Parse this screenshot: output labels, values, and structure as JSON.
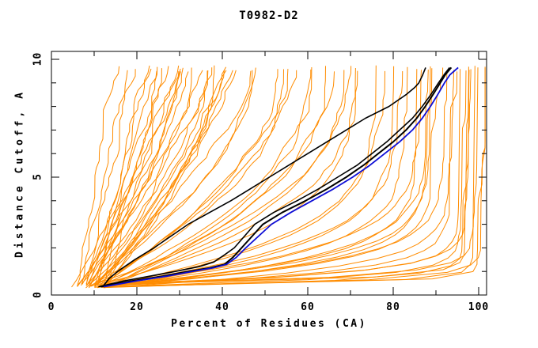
{
  "page": {
    "background": "#ffffff"
  },
  "chart_data": {
    "type": "line",
    "title": "T0982-D2",
    "xlabel": "Percent of Residues (CA)",
    "ylabel": "Distance Cutoff, A",
    "xlim": [
      0,
      101.9
    ],
    "ylim": [
      0,
      10.34
    ],
    "x_ticks_major": [
      0,
      20,
      40,
      60,
      80,
      100
    ],
    "x_ticks_minor": [
      10,
      30,
      50,
      70,
      90
    ],
    "y_ticks_major": [
      0,
      5,
      10
    ],
    "y_ticks_minor": [
      1,
      2,
      3,
      4,
      6,
      7,
      8,
      9
    ],
    "grid": false,
    "legend": "none",
    "colors": {
      "model_lines": "#FF8C00",
      "reference_lines": "#000000",
      "highlight_line": "#0D0DD6",
      "axis": "#000000",
      "background": "#ffffff"
    },
    "series": {
      "black_curves": [
        {
          "name": "black-1",
          "points_cutoff_percent": [
            [
              0.35,
              12
            ],
            [
              0.7,
              13.5
            ],
            [
              1,
              15.5
            ],
            [
              1.5,
              19.5
            ],
            [
              2,
              24
            ],
            [
              2.5,
              28
            ],
            [
              3,
              32
            ],
            [
              3.5,
              37
            ],
            [
              4,
              42
            ],
            [
              4.5,
              46.5
            ],
            [
              5,
              51
            ],
            [
              5.5,
              55.5
            ],
            [
              6,
              60
            ],
            [
              6.5,
              64.5
            ],
            [
              7,
              69
            ],
            [
              7.5,
              73.5
            ],
            [
              8,
              79
            ],
            [
              8.5,
              83
            ],
            [
              8.8,
              85
            ],
            [
              9,
              86
            ],
            [
              9.3,
              86.8
            ],
            [
              9.65,
              87.6
            ]
          ]
        },
        {
          "name": "black-2",
          "points_cutoff_percent": [
            [
              0.35,
              11.5
            ],
            [
              0.6,
              19
            ],
            [
              0.8,
              26
            ],
            [
              1,
              32
            ],
            [
              1.15,
              37
            ],
            [
              1.3,
              40.5
            ],
            [
              1.6,
              42.5
            ],
            [
              2,
              44.5
            ],
            [
              2.5,
              47
            ],
            [
              3,
              49.5
            ],
            [
              3.5,
              54
            ],
            [
              4,
              59.5
            ],
            [
              4.5,
              64.5
            ],
            [
              5,
              69
            ],
            [
              5.5,
              73
            ],
            [
              6,
              76.5
            ],
            [
              6.5,
              80
            ],
            [
              7,
              83
            ],
            [
              7.5,
              85.5
            ],
            [
              8,
              87.5
            ],
            [
              8.5,
              89.3
            ],
            [
              9,
              91
            ],
            [
              9.35,
              92.2
            ],
            [
              9.65,
              93.6
            ]
          ]
        },
        {
          "name": "black-3",
          "points_cutoff_percent": [
            [
              0.35,
              11
            ],
            [
              0.6,
              17
            ],
            [
              0.8,
              23
            ],
            [
              1,
              29
            ],
            [
              1.2,
              34.5
            ],
            [
              1.4,
              38
            ],
            [
              1.7,
              40.5
            ],
            [
              2,
              42.8
            ],
            [
              2.5,
              45.2
            ],
            [
              3,
              47.6
            ],
            [
              3.5,
              52
            ],
            [
              4,
              57.5
            ],
            [
              4.5,
              62.5
            ],
            [
              5,
              67
            ],
            [
              5.5,
              71.5
            ],
            [
              6,
              75
            ],
            [
              6.5,
              78.5
            ],
            [
              7,
              81.5
            ],
            [
              7.5,
              84.5
            ],
            [
              8,
              86.8
            ],
            [
              8.5,
              88.8
            ],
            [
              9,
              90.6
            ],
            [
              9.35,
              91.9
            ],
            [
              9.65,
              93.2
            ]
          ]
        }
      ],
      "blue_curve": {
        "name": "blue-highlight",
        "points_cutoff_percent": [
          [
            0.35,
            12.2
          ],
          [
            0.6,
            20
          ],
          [
            0.8,
            27
          ],
          [
            1,
            33
          ],
          [
            1.15,
            37.8
          ],
          [
            1.3,
            41
          ],
          [
            1.6,
            43.3
          ],
          [
            2,
            45.5
          ],
          [
            2.5,
            48.5
          ],
          [
            3,
            51.5
          ],
          [
            3.5,
            56
          ],
          [
            4,
            61
          ],
          [
            4.5,
            66
          ],
          [
            5,
            70.5
          ],
          [
            5.5,
            74.5
          ],
          [
            6,
            78
          ],
          [
            6.5,
            81.5
          ],
          [
            7,
            84.5
          ],
          [
            7.5,
            86.8
          ],
          [
            8,
            88.7
          ],
          [
            8.5,
            90.4
          ],
          [
            9,
            92
          ],
          [
            9.35,
            93.3
          ],
          [
            9.65,
            95.2
          ]
        ]
      },
      "orange_models": {
        "name": "model-curves",
        "count": 64,
        "param_format": [
          "start_percent_at_cutoff0.35",
          "percent_at_cutoff9.65",
          "shape_k"
        ],
        "curves": [
          [
            6,
            16,
            1.0
          ],
          [
            7,
            18,
            0.9
          ],
          [
            8,
            20,
            1.1
          ],
          [
            9,
            22,
            1.0
          ],
          [
            10,
            24,
            1.2
          ],
          [
            8,
            25,
            0.8
          ],
          [
            11,
            26,
            1.0
          ],
          [
            12,
            28,
            1.1
          ],
          [
            10,
            29,
            0.9
          ],
          [
            13,
            30,
            1.0
          ],
          [
            5,
            28,
            1.2
          ],
          [
            6,
            30,
            1.3
          ],
          [
            7,
            31,
            1.1
          ],
          [
            8,
            32,
            1.4
          ],
          [
            9,
            33,
            1.2
          ],
          [
            10,
            34,
            1.5
          ],
          [
            6,
            35,
            1.3
          ],
          [
            7,
            36,
            1.2
          ],
          [
            8,
            37,
            1.5
          ],
          [
            9,
            38,
            1.3
          ],
          [
            11,
            38,
            1.6
          ],
          [
            12,
            39,
            1.2
          ],
          [
            10,
            40,
            1.4
          ],
          [
            11,
            41,
            1.3
          ],
          [
            13,
            41,
            1.6
          ],
          [
            12,
            42,
            1.4
          ],
          [
            8,
            45,
            1.5
          ],
          [
            9,
            48,
            1.6
          ],
          [
            10,
            50,
            1.5
          ],
          [
            11,
            52,
            1.8
          ],
          [
            12,
            54,
            1.7
          ],
          [
            9,
            56,
            2.0
          ],
          [
            10,
            58,
            1.8
          ],
          [
            13,
            60,
            2.2
          ],
          [
            11,
            62,
            2.0
          ],
          [
            12,
            64,
            2.4
          ],
          [
            14,
            66,
            2.2
          ],
          [
            10,
            68,
            2.6
          ],
          [
            13,
            69,
            2.4
          ],
          [
            12,
            70,
            2.8
          ],
          [
            9,
            72,
            3.5
          ],
          [
            10,
            74,
            4.5
          ],
          [
            11,
            76,
            4.0
          ],
          [
            12,
            78,
            5.5
          ],
          [
            13,
            80,
            5.0
          ],
          [
            10,
            82,
            6.5
          ],
          [
            11,
            84,
            6.0
          ],
          [
            14,
            85,
            8.0
          ],
          [
            12,
            86,
            7.0
          ],
          [
            13,
            88,
            9.0
          ],
          [
            15,
            89,
            8.0
          ],
          [
            11,
            90,
            10.0
          ],
          [
            14,
            91,
            9.0
          ],
          [
            12,
            92,
            11.0
          ],
          [
            11,
            93,
            15
          ],
          [
            12,
            94,
            20
          ],
          [
            13,
            95,
            25
          ],
          [
            14,
            96,
            18
          ],
          [
            12,
            97,
            30
          ],
          [
            15,
            97,
            40
          ],
          [
            13,
            98,
            28
          ],
          [
            14,
            99,
            50
          ],
          [
            15,
            100,
            35
          ],
          [
            16,
            100,
            60
          ]
        ]
      }
    }
  }
}
